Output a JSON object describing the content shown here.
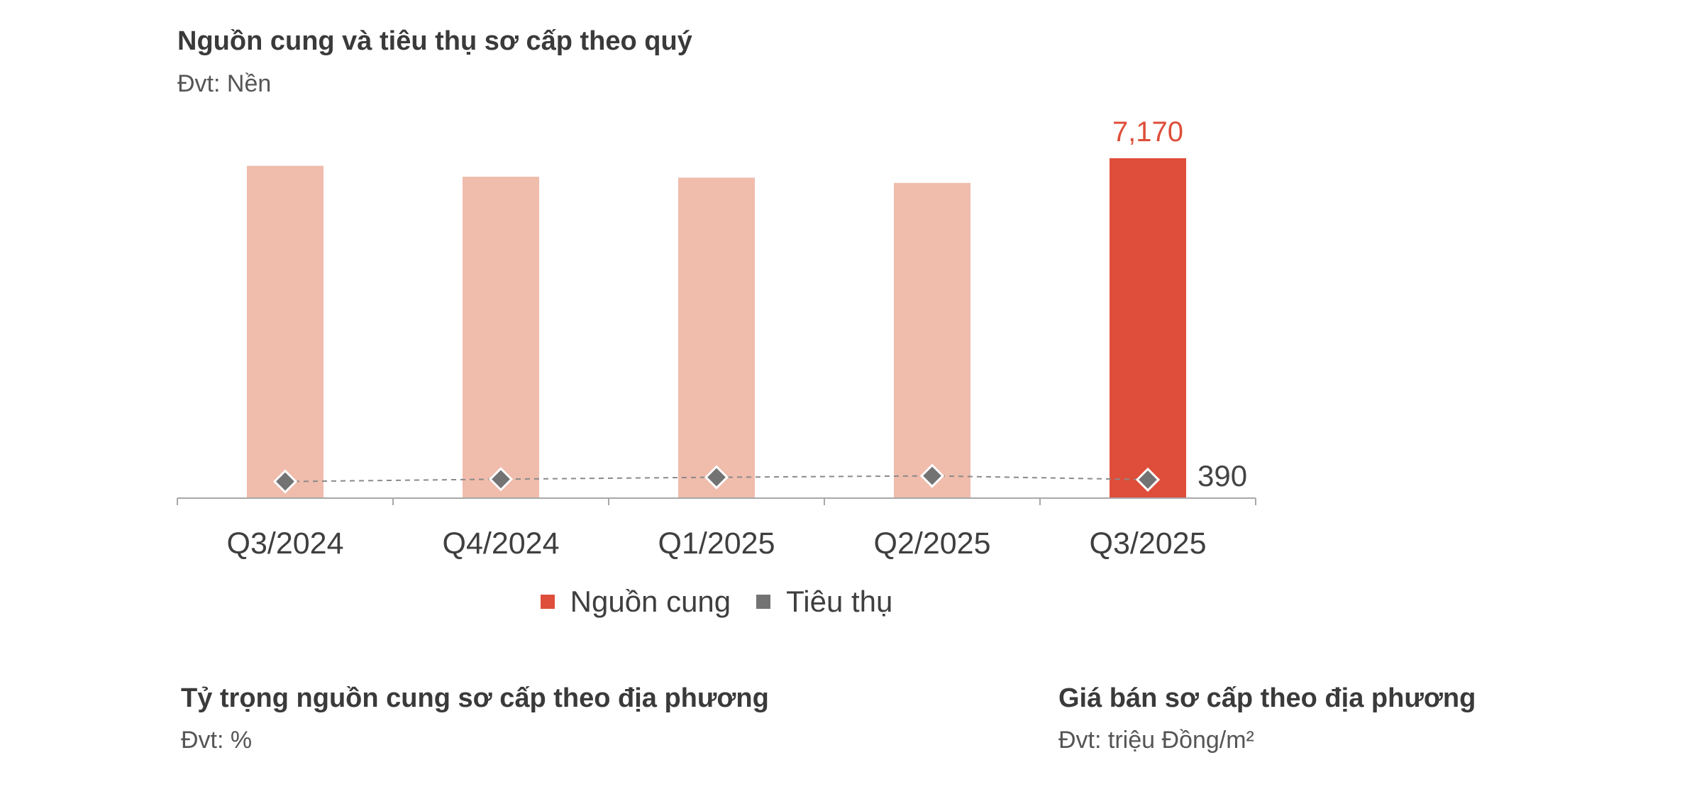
{
  "chart_data": {
    "type": "bar",
    "title": "Nguồn cung và tiêu thụ sơ cấp theo quý",
    "subtitle": "Đvt: Nền",
    "categories": [
      "Q3/2024",
      "Q4/2024",
      "Q1/2025",
      "Q2/2025",
      "Q3/2025"
    ],
    "series": [
      {
        "name": "Nguồn cung",
        "type": "bar",
        "values": [
          7010,
          6780,
          6760,
          6650,
          7170
        ],
        "colors": [
          "#F0BCAC",
          "#F0BCAC",
          "#F0BCAC",
          "#F0BCAC",
          "#DE4E3A"
        ],
        "legend_color": "#DE4E3A",
        "label_color": "#DE4E3A",
        "labels": [
          "",
          "",
          "",
          "",
          "7,170"
        ]
      },
      {
        "name": "Tiêu thụ",
        "type": "line",
        "marker": "diamond",
        "line_style": "dashed",
        "values": [
          350,
          400,
          440,
          470,
          390
        ],
        "color": "#737373",
        "label_color": "#444444",
        "labels": [
          "",
          "",
          "",
          "",
          "390"
        ]
      }
    ],
    "legend": "bottom",
    "grid": false
  },
  "sections": [
    {
      "title": "Tỷ trọng nguồn cung sơ cấp theo địa phương",
      "unit": "Đvt: %"
    },
    {
      "title": "Giá bán sơ cấp theo địa phương",
      "unit": "Đvt: triệu Đồng/m²"
    }
  ]
}
